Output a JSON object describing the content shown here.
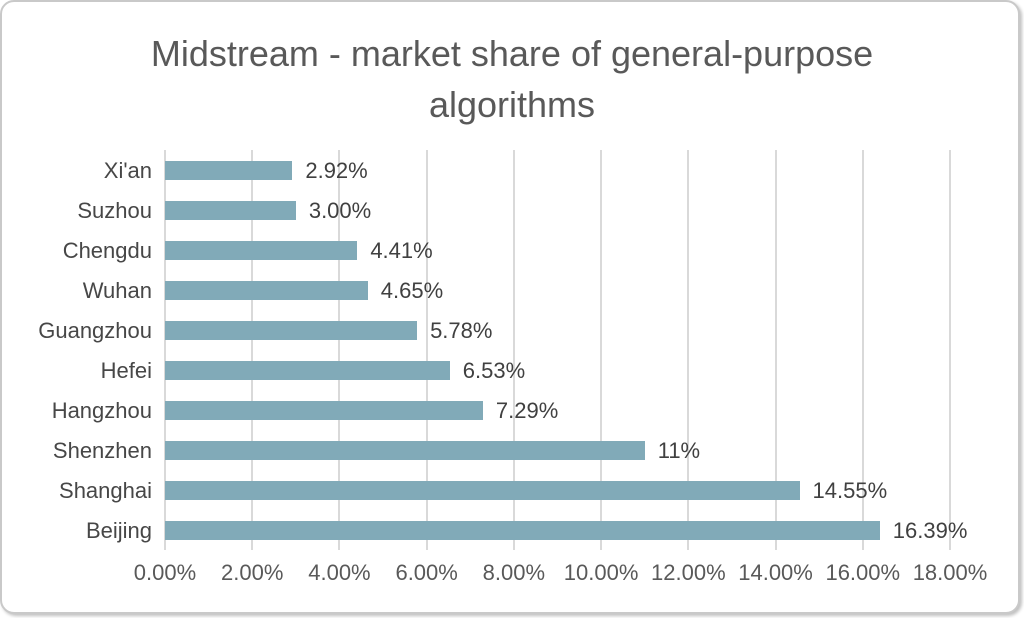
{
  "chart_data": {
    "type": "bar",
    "orientation": "horizontal",
    "title": "Midstream - market share of general-purpose algorithms",
    "categories": [
      "Xi'an",
      "Suzhou",
      "Chengdu",
      "Wuhan",
      "Guangzhou",
      "Hefei",
      "Hangzhou",
      "Shenzhen",
      "Shanghai",
      "Beijing"
    ],
    "values": [
      2.92,
      3.0,
      4.41,
      4.65,
      5.78,
      6.53,
      7.29,
      11,
      14.55,
      16.39
    ],
    "value_labels": [
      "2.92%",
      "3.00%",
      "4.41%",
      "4.65%",
      "5.78%",
      "6.53%",
      "7.29%",
      "11%",
      "14.55%",
      "16.39%"
    ],
    "x_ticks": [
      "0.00%",
      "2.00%",
      "4.00%",
      "6.00%",
      "8.00%",
      "10.00%",
      "12.00%",
      "14.00%",
      "16.00%",
      "18.00%"
    ],
    "xlim": [
      0,
      18
    ],
    "grid": "vertical-only",
    "legend": "none",
    "bar_color": "#81aab8",
    "gridline_color": "#d9d9d9",
    "title_color": "#595959",
    "label_color": "#404040"
  }
}
